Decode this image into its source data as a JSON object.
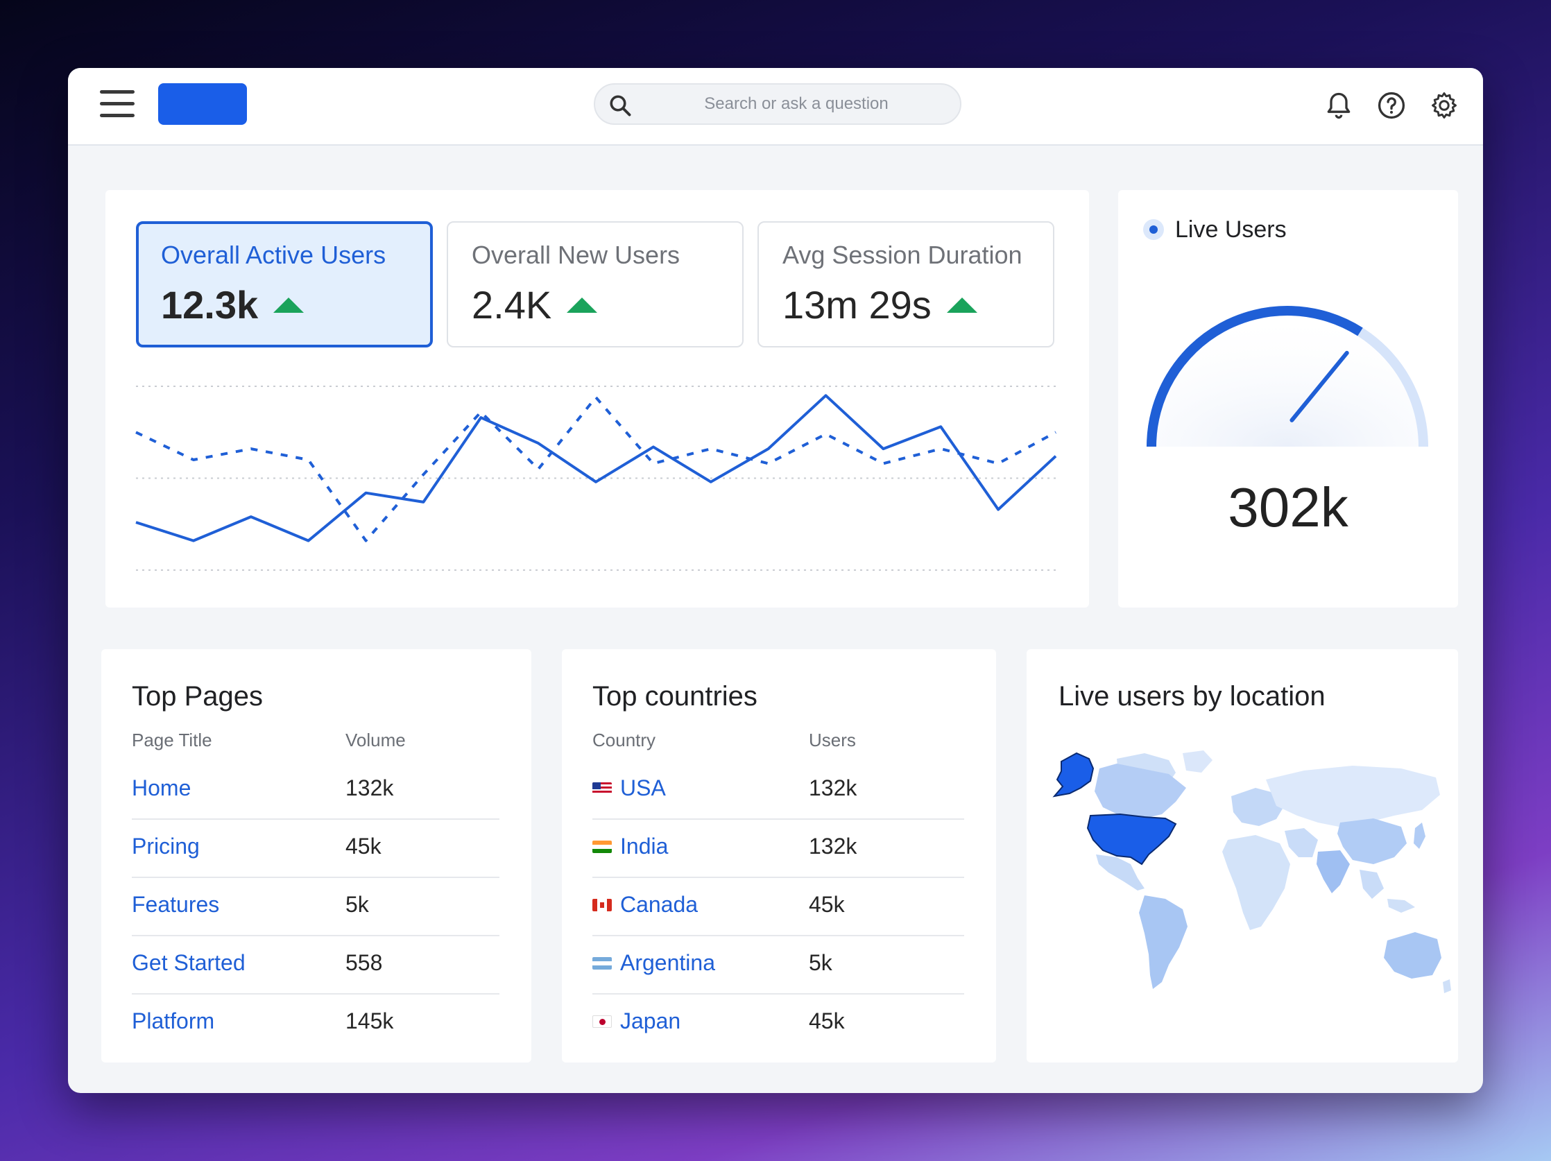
{
  "search": {
    "placeholder": "Search or ask a question"
  },
  "kpis": [
    {
      "label": "Overall Active Users",
      "value": "12.3k",
      "trend": "up"
    },
    {
      "label": "Overall New Users",
      "value": "2.4K",
      "trend": "up"
    },
    {
      "label": "Avg Session Duration",
      "value": "13m 29s",
      "trend": "up"
    }
  ],
  "live_users": {
    "title": "Live Users",
    "value": "302k",
    "gauge_fraction": 0.68
  },
  "top_pages": {
    "title": "Top Pages",
    "columns": [
      "Page Title",
      "Volume"
    ],
    "rows": [
      {
        "page": "Home",
        "volume": "132k"
      },
      {
        "page": "Pricing",
        "volume": "45k"
      },
      {
        "page": "Features",
        "volume": "5k"
      },
      {
        "page": "Get Started",
        "volume": "558"
      },
      {
        "page": "Platform",
        "volume": "145k"
      }
    ]
  },
  "top_countries": {
    "title": "Top countries",
    "columns": [
      "Country",
      "Users"
    ],
    "rows": [
      {
        "country": "USA",
        "users": "132k",
        "flag": "us-flag-icon"
      },
      {
        "country": "India",
        "users": "132k",
        "flag": "india-flag-icon"
      },
      {
        "country": "Canada",
        "users": "45k",
        "flag": "canada-flag-icon"
      },
      {
        "country": "Argentina",
        "users": "5k",
        "flag": "argentina-flag-icon"
      },
      {
        "country": "Japan",
        "users": "45k",
        "flag": "japan-flag-icon"
      }
    ]
  },
  "map": {
    "title": "Live users by location",
    "highlight": [
      "USA",
      "Alaska"
    ]
  },
  "colors": {
    "accent": "#1f5fd6",
    "up": "#1aa35b",
    "logo": "#1a5ee8"
  },
  "chart_data": {
    "type": "line",
    "grid": true,
    "ylim": [
      0,
      100
    ],
    "series": [
      {
        "style": "solid",
        "values": [
          26,
          16,
          29,
          16,
          42,
          37,
          83,
          69,
          48,
          67,
          48,
          66,
          95,
          66,
          78,
          33,
          62
        ]
      },
      {
        "style": "dashed",
        "values": [
          75,
          60,
          66,
          60,
          16,
          52,
          86,
          55,
          94,
          58,
          66,
          58,
          74,
          58,
          66,
          58,
          75
        ]
      }
    ]
  }
}
